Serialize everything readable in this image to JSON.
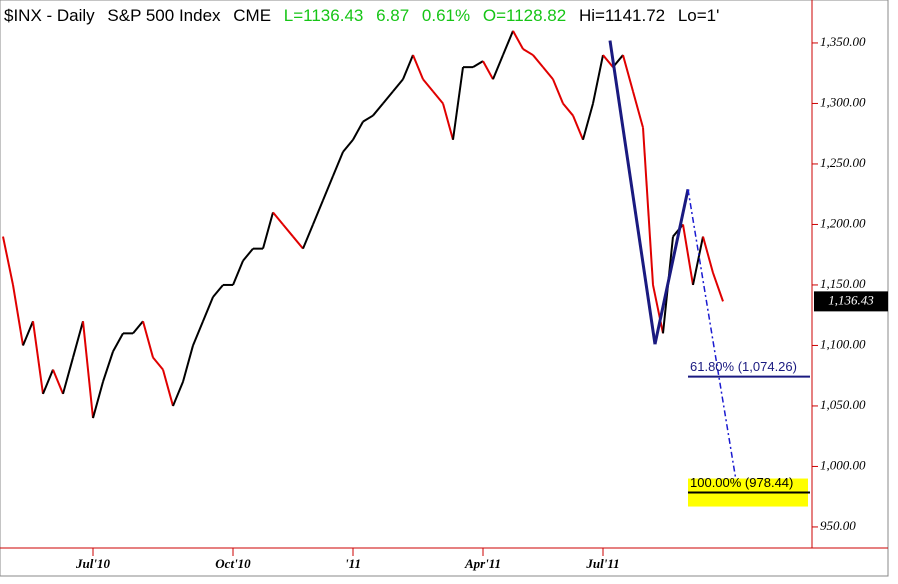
{
  "header": {
    "symbol": "$INX - Daily",
    "name": "S&P 500 Index",
    "exchange": "CME",
    "last": "L=1136.43",
    "change": "6.87",
    "change_pct": "0.61%",
    "open": "O=1128.82",
    "high": "Hi=1141.72",
    "low": "Lo=1'"
  },
  "chart_data": {
    "type": "line",
    "categories": [
      null,
      null,
      null,
      null,
      null,
      null,
      null,
      null,
      null,
      "Jul'10",
      null,
      null,
      null,
      null,
      null,
      null,
      null,
      null,
      null,
      null,
      null,
      null,
      null,
      "Oct'10",
      null,
      null,
      null,
      null,
      null,
      null,
      null,
      null,
      null,
      null,
      null,
      "'11",
      null,
      null,
      null,
      null,
      null,
      null,
      null,
      null,
      null,
      null,
      null,
      null,
      "Apr'11",
      null,
      null,
      null,
      null,
      null,
      null,
      null,
      null,
      null,
      null,
      null,
      "Jul'11",
      null,
      null,
      null,
      null,
      null,
      null,
      null,
      null,
      null,
      null,
      null,
      null
    ],
    "values": [
      1190,
      1150,
      1100,
      1120,
      1060,
      1080,
      1060,
      1090,
      1120,
      1040,
      1070,
      1095,
      1110,
      1110,
      1120,
      1090,
      1080,
      1050,
      1070,
      1100,
      1120,
      1140,
      1150,
      1150,
      1170,
      1180,
      1180,
      1210,
      1200,
      1190,
      1180,
      1200,
      1220,
      1240,
      1260,
      1270,
      1285,
      1290,
      1300,
      1310,
      1320,
      1340,
      1320,
      1310,
      1300,
      1270,
      1330,
      1330,
      1335,
      1320,
      1340,
      1360,
      1345,
      1340,
      1330,
      1320,
      1300,
      1290,
      1270,
      1300,
      1340,
      1330,
      1340,
      1310,
      1280,
      1150,
      1110,
      1190,
      1200,
      1150,
      1190,
      1160,
      1136.43
    ],
    "up_color": "#000000",
    "down_color": "#e00000",
    "last_label": "1,136.43",
    "ylim": [
      932.6,
      1385.5
    ],
    "yticks": [
      {
        "value": 950,
        "label": "950.00"
      },
      {
        "value": 1000,
        "label": "1,000.00"
      },
      {
        "value": 1050,
        "label": "1,050.00"
      },
      {
        "value": 1100,
        "label": "1,100.00"
      },
      {
        "value": 1150,
        "label": "1,150.00"
      },
      {
        "value": 1200,
        "label": "1,200.00"
      },
      {
        "value": 1250,
        "label": "1,250.00"
      },
      {
        "value": 1300,
        "label": "1,300.00"
      },
      {
        "value": 1350,
        "label": "1,350.00"
      }
    ],
    "pattern": {
      "x": [
        60.7,
        65.2,
        68.5,
        73.5
      ],
      "values": [
        1352,
        1101,
        1229,
        978.44
      ],
      "color": "#1a1a80"
    },
    "fib_levels": [
      {
        "value": 1074.26,
        "label": "61.80% (1,074.26)"
      },
      {
        "value": 978.44,
        "label": "100.00% (978.44)"
      }
    ]
  }
}
